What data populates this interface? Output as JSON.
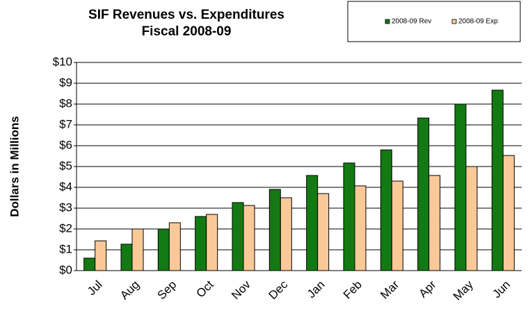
{
  "chart_data": {
    "type": "bar",
    "title": "SIF Revenues vs. Expenditures",
    "subtitle": "Fiscal 2008-09",
    "y_label": "Dollars in Millions",
    "categories": [
      "Jul",
      "Aug",
      "Sep",
      "Oct",
      "Nov",
      "Dec",
      "Jan",
      "Feb",
      "Mar",
      "Apr",
      "May",
      "Jun"
    ],
    "series": [
      {
        "name": "2008-09 Rev",
        "color": "#137a13",
        "values": [
          0.6,
          1.27,
          2.0,
          2.6,
          3.27,
          3.9,
          4.57,
          5.17,
          5.8,
          7.33,
          8.0,
          8.67
        ]
      },
      {
        "name": "2008-09 Exp",
        "color": "#fbc998",
        "values": [
          1.43,
          2.0,
          2.3,
          2.7,
          3.13,
          3.5,
          3.7,
          4.07,
          4.3,
          4.57,
          5.0,
          5.53
        ]
      }
    ],
    "ylim": [
      0,
      10
    ],
    "yticks": [
      {
        "value": 0,
        "label": "$0"
      },
      {
        "value": 1,
        "label": "$1"
      },
      {
        "value": 2,
        "label": "$2"
      },
      {
        "value": 3,
        "label": "$3"
      },
      {
        "value": 4,
        "label": "$4"
      },
      {
        "value": 5,
        "label": "$5"
      },
      {
        "value": 6,
        "label": "$6"
      },
      {
        "value": 7,
        "label": "$7"
      },
      {
        "value": 8,
        "label": "$8"
      },
      {
        "value": 9,
        "label": "$9"
      },
      {
        "value": 10,
        "label": "$10"
      }
    ],
    "grid": true,
    "legend": "top-right"
  }
}
